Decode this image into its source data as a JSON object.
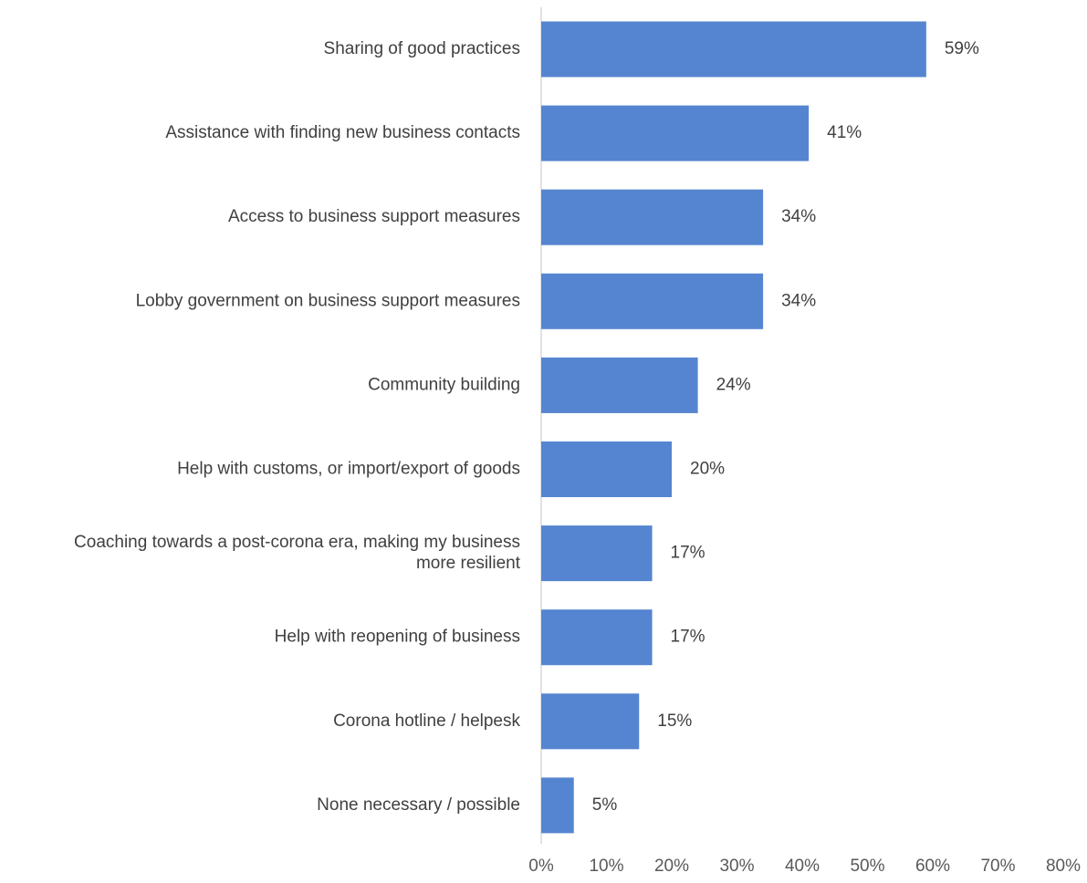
{
  "chart_data": {
    "type": "bar",
    "orientation": "horizontal",
    "categories": [
      [
        "Sharing of good practices"
      ],
      [
        "Assistance with finding new business contacts"
      ],
      [
        "Access to business support measures"
      ],
      [
        "Lobby government on business support measures"
      ],
      [
        "Community building"
      ],
      [
        "Help with customs, or import/export of goods"
      ],
      [
        "Coaching towards a post-corona era, making my business",
        "more resilient"
      ],
      [
        "Help with reopening of business"
      ],
      [
        "Corona hotline / helpesk"
      ],
      [
        "None necessary / possible"
      ]
    ],
    "values": [
      59,
      41,
      34,
      34,
      24,
      20,
      17,
      17,
      15,
      5
    ],
    "value_labels": [
      "59%",
      "41%",
      "34%",
      "34%",
      "24%",
      "20%",
      "17%",
      "17%",
      "15%",
      "5%"
    ],
    "xlim": [
      0,
      80
    ],
    "x_ticks": [
      0,
      10,
      20,
      30,
      40,
      50,
      60,
      70,
      80
    ],
    "x_tick_labels": [
      "0%",
      "10%",
      "20%",
      "30%",
      "40%",
      "50%",
      "60%",
      "70%",
      "80%"
    ],
    "bar_color": "#5585D0",
    "grid": false,
    "legend": "none"
  }
}
